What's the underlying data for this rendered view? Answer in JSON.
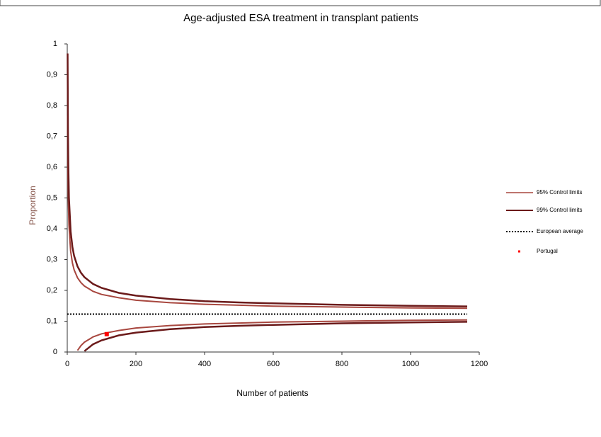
{
  "chart_data": {
    "type": "funnel",
    "title": "Age-adjusted ESA treatment in transplant patients",
    "x_label": "Number of patients",
    "y_label": "Proportion",
    "x": [
      1,
      2,
      3,
      5,
      10,
      15,
      20,
      30,
      40,
      50,
      75,
      100,
      150,
      200,
      300,
      400,
      500,
      600,
      800,
      1000,
      1165
    ],
    "series": [
      {
        "name": "95% Control limits",
        "color": "#a8473f",
        "values": [
          0.767,
          0.578,
          0.495,
          0.411,
          0.327,
          0.289,
          0.267,
          0.241,
          0.225,
          0.214,
          0.197,
          0.187,
          0.176,
          0.168,
          0.16,
          0.155,
          0.152,
          0.149,
          0.146,
          0.143,
          0.142
        ],
        "lower": [
          null,
          null,
          null,
          null,
          null,
          null,
          null,
          0.005,
          0.021,
          0.032,
          0.049,
          0.059,
          0.07,
          0.078,
          0.086,
          0.091,
          0.094,
          0.097,
          0.1,
          0.103,
          0.104
        ]
      },
      {
        "name": "99% Control limits",
        "color": "#6b1a1a",
        "values": [
          0.969,
          0.721,
          0.612,
          0.501,
          0.391,
          0.341,
          0.312,
          0.278,
          0.257,
          0.243,
          0.221,
          0.208,
          0.192,
          0.183,
          0.172,
          0.165,
          0.161,
          0.158,
          0.153,
          0.15,
          0.148
        ],
        "lower": [
          null,
          null,
          null,
          null,
          null,
          null,
          null,
          null,
          null,
          0.003,
          0.025,
          0.038,
          0.054,
          0.063,
          0.074,
          0.081,
          0.085,
          0.088,
          0.093,
          0.096,
          0.098
        ]
      }
    ],
    "reference": {
      "name": "European average",
      "color": "#000000",
      "value": 0.123
    },
    "point": {
      "name": "Portugal",
      "color": "#ff0000",
      "x": 115,
      "y": 0.058
    },
    "xlim": [
      0,
      1200
    ],
    "xticks": [
      0,
      200,
      400,
      600,
      800,
      1000,
      1200
    ],
    "ylim": [
      0,
      1
    ],
    "yticks": [
      0,
      {
        "value": 0.1,
        "label": "0,1"
      },
      {
        "value": 0.2,
        "label": "0,2"
      },
      {
        "value": 0.3,
        "label": "0,3"
      },
      {
        "value": 0.4,
        "label": "0,4"
      },
      {
        "value": 0.5,
        "label": "0,5"
      },
      {
        "value": 0.6,
        "label": "0,6"
      },
      {
        "value": 0.7,
        "label": "0,7"
      },
      {
        "value": 0.8,
        "label": "0,8"
      },
      {
        "value": 0.9,
        "label": "0,9"
      },
      1
    ],
    "grid": false,
    "legend": "right"
  }
}
